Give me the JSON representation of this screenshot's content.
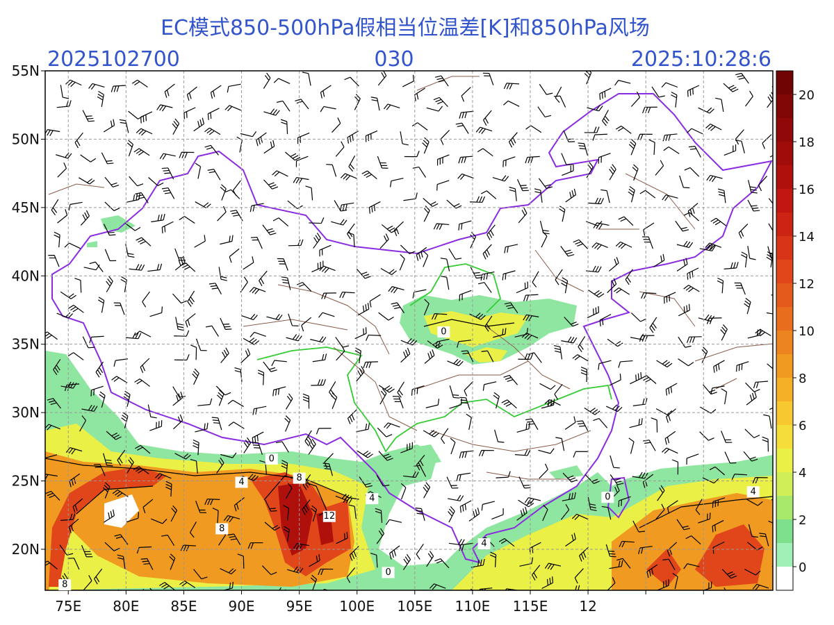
{
  "header": {
    "title": "EC模式850-500hPa假相当位温差[K]和850hPa风场",
    "run": "2025102700",
    "step": "030",
    "valid": "2025:10:28:6"
  },
  "map": {
    "lonlim": [
      73,
      136
    ],
    "latlim": [
      17,
      55
    ],
    "lonticks": [
      {
        "value": 75,
        "label": "75E"
      },
      {
        "value": 80,
        "label": "80E"
      },
      {
        "value": 85,
        "label": "85E"
      },
      {
        "value": 90,
        "label": "90E"
      },
      {
        "value": 95,
        "label": "95E"
      },
      {
        "value": 100,
        "label": "100E"
      },
      {
        "value": 105,
        "label": "105E"
      },
      {
        "value": 110,
        "label": "110E"
      },
      {
        "value": 115,
        "label": "115E"
      },
      {
        "value": 120,
        "label": "12"
      },
      {
        "value": 125,
        "label": null
      },
      {
        "value": 130,
        "label": null
      }
    ],
    "latticks": [
      {
        "value": 20,
        "label": "20N"
      },
      {
        "value": 25,
        "label": "25N"
      },
      {
        "value": 30,
        "label": "30N"
      },
      {
        "value": 35,
        "label": "35N"
      },
      {
        "value": 40,
        "label": "40N"
      },
      {
        "value": 45,
        "label": "45N"
      },
      {
        "value": 50,
        "label": "50N"
      },
      {
        "value": 55,
        "label": "55N"
      }
    ],
    "grid": true
  },
  "colorbar": {
    "lim": [
      -1,
      21
    ],
    "ticks": [
      0,
      2,
      4,
      6,
      8,
      10,
      12,
      14,
      16,
      18,
      20
    ],
    "colors": [
      "#ffffff",
      "#a0f0b8",
      "#7ee08c",
      "#a8e86a",
      "#cfee58",
      "#eaf046",
      "#f6de3a",
      "#f8c830",
      "#f5b028",
      "#f09a22",
      "#ec8420",
      "#e86e1e",
      "#e45a1c",
      "#e0461a",
      "#d83418",
      "#cc2414",
      "#c01810",
      "#b0100c",
      "#a00c0a",
      "#900808",
      "#800606",
      "#700404"
    ]
  },
  "contour_labels": [
    {
      "lon": 107.5,
      "lat": 35.9,
      "value": 0
    },
    {
      "lon": 92.6,
      "lat": 26.6,
      "value": 0
    },
    {
      "lon": 90,
      "lat": 24.9,
      "value": 4
    },
    {
      "lon": 95,
      "lat": 25.2,
      "value": 8
    },
    {
      "lon": 101.3,
      "lat": 23.7,
      "value": 4
    },
    {
      "lon": 97.6,
      "lat": 22.4,
      "value": 12
    },
    {
      "lon": 88.3,
      "lat": 21.5,
      "value": 8
    },
    {
      "lon": 74.7,
      "lat": 17.4,
      "value": 8
    },
    {
      "lon": 102.7,
      "lat": 18.3,
      "value": 0
    },
    {
      "lon": 121.7,
      "lat": 23.8,
      "value": 0
    },
    {
      "lon": 134.3,
      "lat": 24.2,
      "value": 4
    },
    {
      "lon": 111,
      "lat": 20.4,
      "value": 4
    }
  ]
}
